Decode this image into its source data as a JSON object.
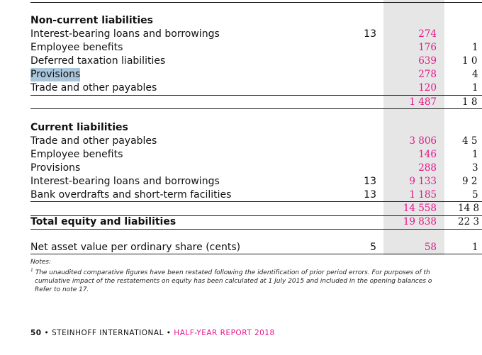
{
  "non_current": {
    "heading": "Non-current liabilities",
    "rows": [
      {
        "label": "Interest-bearing loans and borrowings",
        "note": "13",
        "current": "274",
        "prior": ""
      },
      {
        "label": "Employee benefits",
        "note": "",
        "current": "176",
        "prior": "1"
      },
      {
        "label": "Deferred taxation liabilities",
        "note": "",
        "current": "639",
        "prior": "1 0"
      },
      {
        "label": "Provisions",
        "note": "",
        "current": "278",
        "prior": "4"
      },
      {
        "label": "Trade and other payables",
        "note": "",
        "current": "120",
        "prior": "1"
      }
    ],
    "subtotal": {
      "current": "1 487",
      "prior": "1 8"
    }
  },
  "current": {
    "heading": "Current liabilities",
    "rows": [
      {
        "label": "Trade and other payables",
        "note": "",
        "current": "3 806",
        "prior": "4 5"
      },
      {
        "label": "Employee benefits",
        "note": "",
        "current": "146",
        "prior": "1"
      },
      {
        "label": "Provisions",
        "note": "",
        "current": "288",
        "prior": "3"
      },
      {
        "label": "Interest-bearing loans and borrowings",
        "note": "13",
        "current": "9 133",
        "prior": "9 2"
      },
      {
        "label": "Bank overdrafts and short-term facilities",
        "note": "13",
        "current": "1 185",
        "prior": "5"
      }
    ],
    "subtotal": {
      "current": "14 558",
      "prior": "14 8"
    }
  },
  "total": {
    "label": "Total equity and liabilities",
    "current": "19 838",
    "prior": "22 3"
  },
  "nav": {
    "label": "Net asset value per ordinary share (cents)",
    "note": "5",
    "current": "58",
    "prior": "1"
  },
  "notes": {
    "heading": "Notes:",
    "marker": "1",
    "line1": "The unaudited comparative figures have been restated following the identification of prior period errors. For purposes of th",
    "line2": "cumulative impact of the restatements on equity has been calculated at 1 July 2015 and included in the opening balances o",
    "line3": "Refer to note 17."
  },
  "footer": {
    "page": "50",
    "company": "STEINHOFF INTERNATIONAL",
    "report": "HALF-YEAR REPORT 2018"
  },
  "colors": {
    "accent": "#e6168a",
    "highlight": "#a9c6dd",
    "column_shade": "#e6e6e6"
  }
}
